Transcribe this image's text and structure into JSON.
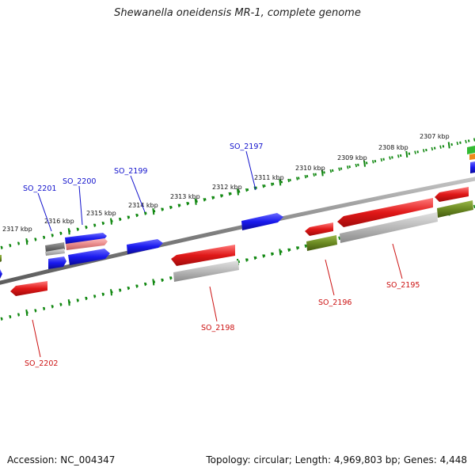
{
  "title": "Shewanella oneidensis MR-1, complete genome",
  "footer": {
    "accession": "Accession: NC_004347",
    "topology": "Topology: circular; Length: 4,969,803 bp; Genes: 4,448"
  },
  "colors": {
    "backbone": "#8a8a8a",
    "ticks": "#118811",
    "forward_gene": "#1a1aee",
    "reverse_gene": "#e01818",
    "gray_feature": "#b0b0b0",
    "dark_gray_feature": "#707070",
    "olive_feature": "#6b8a22",
    "pink_feature": "#e88a8a",
    "green_feature": "#33bb33",
    "orange_feature": "#f08a1a",
    "forward_label": "#1111cc",
    "reverse_label": "#cc1111"
  },
  "ruler": {
    "labels": [
      "2317 kbp",
      "2316 kbp",
      "2315 kbp",
      "2314 kbp",
      "2313 kbp",
      "2312 kbp",
      "2311 kbp",
      "2310 kbp",
      "2309 kbp",
      "2308 kbp",
      "2307 kbp"
    ]
  },
  "genes": {
    "forward_labels": [
      "SO_2201",
      "SO_2200",
      "SO_2199",
      "SO_2197"
    ],
    "reverse_labels": [
      "SO_2202",
      "SO_2198",
      "SO_2196",
      "SO_2195"
    ]
  }
}
